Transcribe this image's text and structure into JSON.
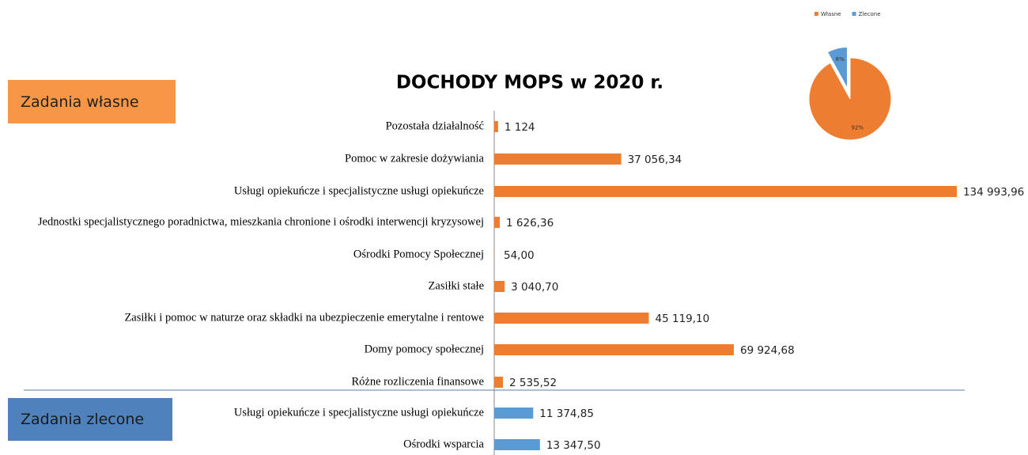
{
  "chart_data": [
    {
      "type": "barh",
      "title": "DOCHODY MOPS w 2020 r.",
      "annotations": [
        "Zadania własne",
        "Zadania zlecone"
      ],
      "categories": [
        "Pozostała działalność",
        "Pomoc w zakresie dożywiania",
        "Usługi opiekuńcze i specjalistyczne usługi opiekuńcze",
        "Jednostki  specjalistycznego poradnictwa, mieszkania chronione i ośrodki interwencji kryzysowej",
        "Ośrodki Pomocy Społecznej",
        "Zasiłki stałe",
        "Zasiłki i pomoc w naturze oraz składki na ubezpieczenie emerytalne i rentowe",
        "Domy pomocy społecznej",
        "Różne rozliczenia finansowe",
        "Usługi opiekuńcze i specjalistyczne usługi opiekuńcze",
        "Ośrodki wsparcia"
      ],
      "values": [
        1124,
        37056.34,
        134993.96,
        1626.36,
        54,
        3040.7,
        45119.1,
        69924.68,
        2535.52,
        11374.85,
        13347.5
      ],
      "value_labels": [
        "1 124",
        "37 056,34",
        "134 993,96",
        "1 626,36",
        "54,00",
        "3 040,70",
        "45 119,10",
        "69 924,68",
        "2 535,52",
        "11 374,85",
        "13 347,50"
      ],
      "colors": [
        "#ed7d31",
        "#ed7d31",
        "#ed7d31",
        "#ed7d31",
        "#ed7d31",
        "#ed7d31",
        "#ed7d31",
        "#ed7d31",
        "#ed7d31",
        "#5b9bd5",
        "#5b9bd5"
      ],
      "xlim": [
        0,
        135000
      ]
    },
    {
      "type": "pie",
      "categories": [
        "Własne",
        "Zlecone"
      ],
      "values": [
        92,
        8
      ],
      "value_labels": [
        "92%",
        "8%"
      ],
      "colors": [
        "#ed7d31",
        "#5b9bd5"
      ],
      "legend": "top"
    }
  ]
}
